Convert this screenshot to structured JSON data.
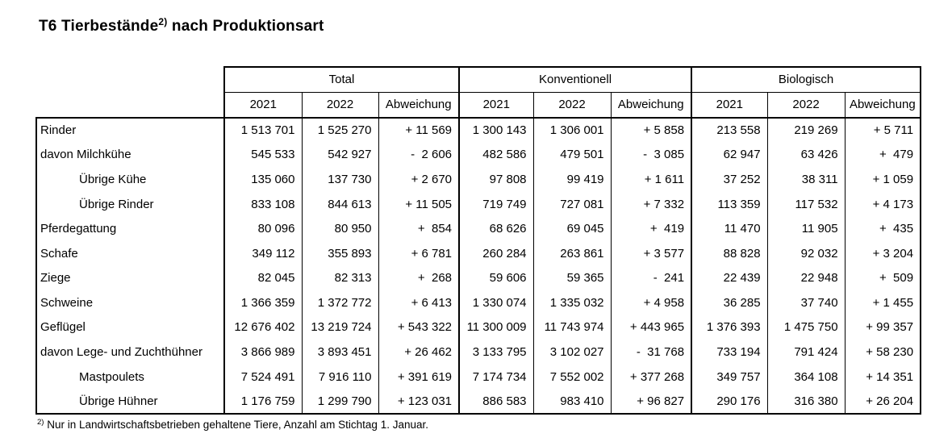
{
  "title": {
    "prefix": "T6 Tierbestände",
    "superscript": "2)",
    "suffix": " nach Produktionsart"
  },
  "table": {
    "groups": [
      "Total",
      "Konventionell",
      "Biologisch"
    ],
    "columns": [
      "2021",
      "2022",
      "Abweichung",
      "2021",
      "2022",
      "Abweichung",
      "2021",
      "2022",
      "Abweichung"
    ],
    "rows": [
      {
        "label": "Rinder",
        "indent": false,
        "values": [
          "1 513 701",
          "1 525 270",
          "+ 11 569",
          "1 300 143",
          "1 306 001",
          "+ 5 858",
          "213 558",
          "219 269",
          "+ 5 711"
        ]
      },
      {
        "label": "davon Milchkühe",
        "indent": false,
        "values": [
          "545 533",
          "542 927",
          "-  2 606",
          "482 586",
          "479 501",
          "-  3 085",
          "62 947",
          "63 426",
          "+  479"
        ]
      },
      {
        "label": "Übrige Kühe",
        "indent": true,
        "values": [
          "135 060",
          "137 730",
          "+ 2 670",
          "97 808",
          "99 419",
          "+ 1 611",
          "37 252",
          "38 311",
          "+ 1 059"
        ]
      },
      {
        "label": "Übrige Rinder",
        "indent": true,
        "values": [
          "833 108",
          "844 613",
          "+ 11 505",
          "719 749",
          "727 081",
          "+ 7 332",
          "113 359",
          "117 532",
          "+ 4 173"
        ]
      },
      {
        "label": "Pferdegattung",
        "indent": false,
        "values": [
          "80 096",
          "80 950",
          "+  854",
          "68 626",
          "69 045",
          "+  419",
          "11 470",
          "11 905",
          "+  435"
        ]
      },
      {
        "label": "Schafe",
        "indent": false,
        "values": [
          "349 112",
          "355 893",
          "+ 6 781",
          "260 284",
          "263 861",
          "+ 3 577",
          "88 828",
          "92 032",
          "+ 3 204"
        ]
      },
      {
        "label": "Ziege",
        "indent": false,
        "values": [
          "82 045",
          "82 313",
          "+  268",
          "59 606",
          "59 365",
          "-  241",
          "22 439",
          "22 948",
          "+  509"
        ]
      },
      {
        "label": "Schweine",
        "indent": false,
        "values": [
          "1 366 359",
          "1 372 772",
          "+ 6 413",
          "1 330 074",
          "1 335 032",
          "+ 4 958",
          "36 285",
          "37 740",
          "+ 1 455"
        ]
      },
      {
        "label": "Geflügel",
        "indent": false,
        "values": [
          "12 676 402",
          "13 219 724",
          "+ 543 322",
          "11 300 009",
          "11 743 974",
          "+ 443 965",
          "1 376 393",
          "1 475 750",
          "+ 99 357"
        ]
      },
      {
        "label": "davon Lege- und Zuchthühner",
        "indent": false,
        "values": [
          "3 866 989",
          "3 893 451",
          "+ 26 462",
          "3 133 795",
          "3 102 027",
          "-  31 768",
          "733 194",
          "791 424",
          "+ 58 230"
        ]
      },
      {
        "label": "Mastpoulets",
        "indent": true,
        "values": [
          "7 524 491",
          "7 916 110",
          "+ 391 619",
          "7 174 734",
          "7 552 002",
          "+ 377 268",
          "349 757",
          "364 108",
          "+ 14 351"
        ]
      },
      {
        "label": "Übrige Hühner",
        "indent": true,
        "values": [
          "1 176 759",
          "1 299 790",
          "+ 123 031",
          "886 583",
          "983 410",
          "+ 96 827",
          "290 176",
          "316 380",
          "+ 26 204"
        ]
      }
    ]
  },
  "footnote": {
    "superscript": "2)",
    "text": " Nur in Landwirtschaftsbetrieben gehaltene Tiere, Anzahl am Stichtag 1. Januar."
  }
}
